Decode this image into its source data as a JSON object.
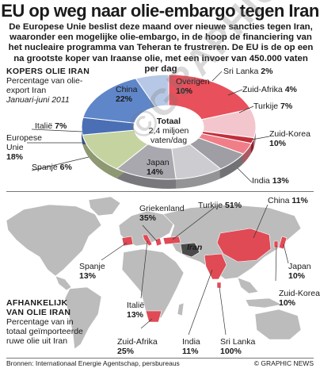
{
  "header": {
    "title": "EU op weg naar olie-embargo tegen Iran",
    "intro": "De Europese Unie beslist deze maand over nieuwe sancties tegen Iran, waaronder een mogelijke olie-embargo, in de hoop de financiering van het nucleaire programma van Teheran te frustreren. De EU is de op een na grootste koper van Iraanse olie, met een invoer van 450.000 vaten per dag"
  },
  "buyers": {
    "heading": "KOPERS OLIE IRAN",
    "desc": "Percentage van olie-export Iran",
    "period": "Januari-juni 2011",
    "total_label": "Totaal",
    "total_value": "2,4 miljoen vaten/dag"
  },
  "dependence": {
    "heading_line1": "AFHANKELIJK",
    "heading_line2": "VAN OLIE IRAN",
    "desc": "Percentage van in totaal geïmporteerde ruwe olie uit Iran",
    "map_label": "Iran"
  },
  "footer": {
    "sources": "Bronnen: Internationaal Energie Agentschap, persbureaus",
    "credit": "© GRAPHIC NEWS"
  },
  "watermark": "©GRAPHIC NEWS",
  "colors": {
    "china": "#e8505b",
    "overigen": "#f3c6cd",
    "srilanka": "#c22f3c",
    "zuidafrika": "#f07e88",
    "turkije": "#9e9ea4",
    "korea": "#cdcdd1",
    "india": "#a8a8ae",
    "japan": "#c5d3a0",
    "spanje": "#4a6fb4",
    "eu": "#5f86c9",
    "italie": "#b7c8e6",
    "land": "#bcbcbc",
    "highlight": "#e04a55"
  },
  "chart_data": [
    {
      "type": "pie",
      "title": "KOPERS OLIE IRAN",
      "subtitle": "Percentage van olie-export Iran, Januari-juni 2011",
      "center_label": "Totaal 2,4 miljoen vaten/dag",
      "slices": [
        {
          "label": "China",
          "value": 22,
          "value_label": "22%"
        },
        {
          "label": "Overigen",
          "value": 10,
          "value_label": "10%"
        },
        {
          "label": "Sri Lanka",
          "value": 2,
          "value_label": "2%"
        },
        {
          "label": "Zuid-Afrika",
          "value": 4,
          "value_label": "4%"
        },
        {
          "label": "Turkije",
          "value": 7,
          "value_label": "7%"
        },
        {
          "label": "Zuid-Korea",
          "value": 10,
          "value_label": "10%"
        },
        {
          "label": "India",
          "value": 13,
          "value_label": "13%"
        },
        {
          "label": "Japan",
          "value": 14,
          "value_label": "14%"
        },
        {
          "label": "Spanje",
          "value": 6,
          "value_label": "6%"
        },
        {
          "label": "Europese Unie",
          "value": 18,
          "value_label": "18%"
        },
        {
          "label": "Italië",
          "value": 7,
          "value_label": "7%"
        }
      ]
    },
    {
      "type": "map",
      "title": "AFHANKELIJK VAN OLIE IRAN",
      "subtitle": "Percentage van in totaal geïmporteerde ruwe olie uit Iran",
      "values": [
        {
          "country": "Griekenland",
          "value": 35,
          "value_label": "35%"
        },
        {
          "country": "Turkije",
          "value": 51,
          "value_label": "51%"
        },
        {
          "country": "China",
          "value": 11,
          "value_label": "11%"
        },
        {
          "country": "Spanje",
          "value": 13,
          "value_label": "13%"
        },
        {
          "country": "Japan",
          "value": 10,
          "value_label": "10%"
        },
        {
          "country": "Zuid-Korea",
          "value": 10,
          "value_label": "10%"
        },
        {
          "country": "Italië",
          "value": 13,
          "value_label": "13%"
        },
        {
          "country": "Zuid-Afrika",
          "value": 25,
          "value_label": "25%"
        },
        {
          "country": "India",
          "value": 11,
          "value_label": "11%"
        },
        {
          "country": "Sri Lanka",
          "value": 100,
          "value_label": "100%"
        }
      ]
    }
  ]
}
